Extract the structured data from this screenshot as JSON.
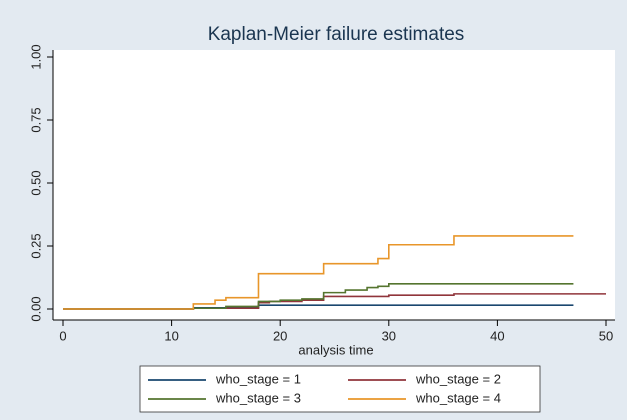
{
  "chart_data": {
    "type": "line",
    "step": true,
    "title": "Kaplan-Meier failure estimates",
    "xlabel": "analysis time",
    "xlim": [
      0,
      50
    ],
    "xticks": [
      0,
      10,
      20,
      30,
      40,
      50
    ],
    "ylim": [
      0,
      1
    ],
    "yticks": [
      {
        "value": 0,
        "label": "0.00"
      },
      {
        "value": 0.25,
        "label": "0.25"
      },
      {
        "value": 0.5,
        "label": "0.50"
      },
      {
        "value": 0.75,
        "label": "0.75"
      },
      {
        "value": 1,
        "label": "1.00"
      }
    ],
    "grid": false,
    "legend": "bottom",
    "series": [
      {
        "name": "who_stage = 1",
        "color": "#1a476f",
        "x": [
          0,
          12,
          18,
          47
        ],
        "values": [
          0,
          0.005,
          0.015,
          0.015
        ]
      },
      {
        "name": "who_stage = 2",
        "color": "#90353b",
        "x": [
          0,
          12,
          18,
          19,
          22,
          24,
          30,
          36,
          50
        ],
        "values": [
          0,
          0.003,
          0.025,
          0.03,
          0.035,
          0.05,
          0.055,
          0.06,
          0.06
        ]
      },
      {
        "name": "who_stage = 3",
        "color": "#55752f",
        "x": [
          0,
          12,
          15,
          18,
          20,
          22,
          24,
          26,
          28,
          29,
          30,
          47
        ],
        "values": [
          0,
          0.003,
          0.01,
          0.03,
          0.035,
          0.04,
          0.065,
          0.075,
          0.085,
          0.09,
          0.1,
          0.1
        ]
      },
      {
        "name": "who_stage = 4",
        "color": "#e8962a",
        "x": [
          0,
          12,
          14,
          15,
          18,
          24,
          29,
          30,
          36,
          47
        ],
        "values": [
          0,
          0.02,
          0.035,
          0.045,
          0.14,
          0.18,
          0.2,
          0.255,
          0.29,
          0.29
        ]
      }
    ]
  }
}
